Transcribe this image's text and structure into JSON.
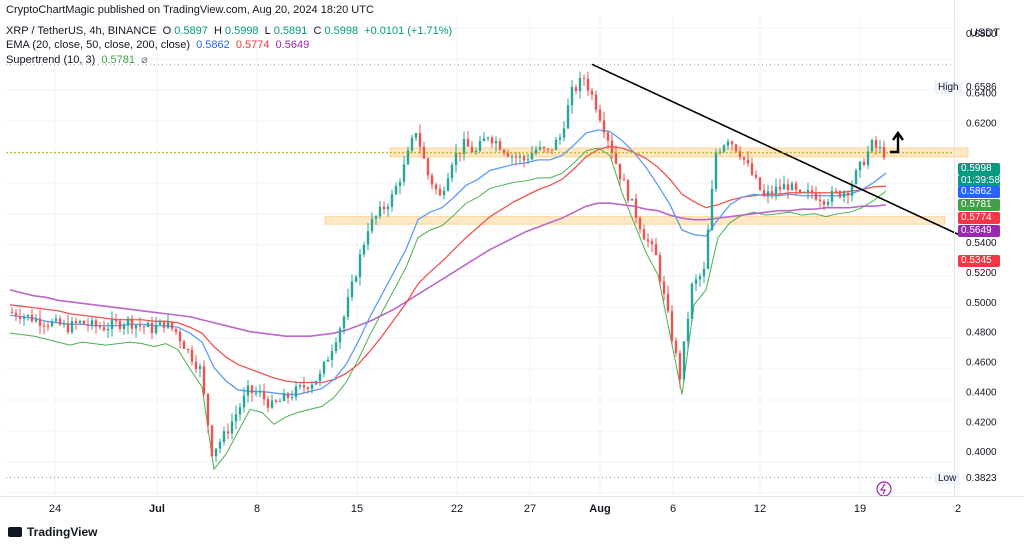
{
  "header": {
    "published": "CryptoChartMagic published on TradingView.com, Aug 20, 2024 18:20 UTC",
    "line1": {
      "symbol": "XRP / TetherUS, 4h, BINANCE",
      "open_label": "O",
      "open": "0.5897",
      "high_label": "H",
      "high": "0.5998",
      "low_label": "L",
      "low": "0.5891",
      "close_label": "C",
      "close": "0.5998",
      "change": "+0.0101 (+1.71%)"
    },
    "line2": {
      "label": "EMA (20, close, 50, close, 200, close)",
      "ema20": "0.5862",
      "ema50": "0.5774",
      "ema200": "0.5649"
    },
    "line3": {
      "label": "Supertrend (10, 3)",
      "value": "0.5781",
      "eye": "⌀"
    }
  },
  "price_scale": {
    "currency": "USDT",
    "ticks": [
      "0.6800",
      "0.6400",
      "0.6200",
      "0.5400",
      "0.5200",
      "0.5000",
      "0.4800",
      "0.4600",
      "0.4400",
      "0.4200",
      "0.4000"
    ],
    "high_label": "High",
    "high_value": "0.6586",
    "low_label": "Low",
    "low_value": "0.3823",
    "tags": {
      "price": "0.5998",
      "countdown": "01:39:58",
      "ema20": "0.5862",
      "supertrend": "0.5781",
      "ema50": "0.5774",
      "ema200": "0.5649",
      "supertrend_upper": "0.5345"
    }
  },
  "time_axis": {
    "labels": [
      "24",
      "Jul",
      "8",
      "15",
      "22",
      "27",
      "Aug",
      "6",
      "12",
      "19",
      "2"
    ]
  },
  "branding": {
    "logo_text": "TradingView"
  },
  "colors": {
    "up": "#26a69a",
    "down": "#ef5350",
    "ema20": "#5b9cf6",
    "ema50": "#ef5350",
    "ema200": "#ba68c8",
    "supertrend_up": "#4caf50",
    "supertrend_down": "#ef5350",
    "zone": "#ffe0b2",
    "zone_border": "#ffb74d",
    "trendline": "#000000",
    "price_line": "#b6a900",
    "grid": "#f0f3fa",
    "tag_price": "#089981",
    "tag_ema20": "#2962ff",
    "tag_supertrend": "#43a047",
    "tag_ema50": "#f23645",
    "tag_ema200": "#9c27b0",
    "tag_st_upper": "#f23645"
  },
  "chart_data": {
    "type": "candlestick",
    "symbol": "XRP / TetherUS",
    "interval": "4h",
    "exchange": "BINANCE",
    "x": [
      "Jun 24",
      "Jul",
      "Jul 8",
      "Jul 15",
      "Jul 22",
      "Jul 27",
      "Aug",
      "Aug 6",
      "Aug 12",
      "Aug 19",
      "Aug 2?"
    ],
    "y_range": [
      0.37,
      0.69
    ],
    "close_path": [
      0.493,
      0.492,
      0.489,
      0.487,
      0.485,
      0.483,
      0.486,
      0.484,
      0.483,
      0.485,
      0.487,
      0.484,
      0.482,
      0.486,
      0.48,
      0.467,
      0.455,
      0.4,
      0.41,
      0.425,
      0.44,
      0.438,
      0.43,
      0.435,
      0.44,
      0.445,
      0.45,
      0.47,
      0.49,
      0.52,
      0.55,
      0.56,
      0.57,
      0.59,
      0.615,
      0.585,
      0.57,
      0.595,
      0.605,
      0.6,
      0.612,
      0.605,
      0.598,
      0.595,
      0.602,
      0.6,
      0.61,
      0.64,
      0.65,
      0.632,
      0.61,
      0.585,
      0.565,
      0.545,
      0.53,
      0.49,
      0.45,
      0.51,
      0.52,
      0.6,
      0.61,
      0.6,
      0.585,
      0.57,
      0.575,
      0.578,
      0.57,
      0.573,
      0.569,
      0.572,
      0.575,
      0.59,
      0.605,
      0.5998
    ],
    "ema20_path": [
      0.491,
      0.49,
      0.489,
      0.487,
      0.486,
      0.485,
      0.485,
      0.484,
      0.484,
      0.484,
      0.485,
      0.485,
      0.484,
      0.484,
      0.483,
      0.479,
      0.473,
      0.456,
      0.447,
      0.441,
      0.44,
      0.44,
      0.439,
      0.438,
      0.438,
      0.44,
      0.442,
      0.448,
      0.458,
      0.473,
      0.49,
      0.505,
      0.52,
      0.535,
      0.555,
      0.56,
      0.563,
      0.57,
      0.578,
      0.582,
      0.588,
      0.59,
      0.592,
      0.593,
      0.595,
      0.595,
      0.598,
      0.605,
      0.613,
      0.615,
      0.614,
      0.608,
      0.6,
      0.59,
      0.578,
      0.565,
      0.548,
      0.545,
      0.544,
      0.555,
      0.565,
      0.57,
      0.572,
      0.571,
      0.571,
      0.572,
      0.571,
      0.571,
      0.571,
      0.571,
      0.572,
      0.575,
      0.58,
      0.5862
    ],
    "ema50_path": [
      0.498,
      0.497,
      0.496,
      0.495,
      0.494,
      0.492,
      0.491,
      0.49,
      0.489,
      0.488,
      0.488,
      0.488,
      0.487,
      0.487,
      0.486,
      0.483,
      0.479,
      0.47,
      0.463,
      0.458,
      0.455,
      0.452,
      0.449,
      0.447,
      0.446,
      0.446,
      0.446,
      0.448,
      0.452,
      0.458,
      0.467,
      0.477,
      0.488,
      0.499,
      0.512,
      0.52,
      0.527,
      0.535,
      0.543,
      0.55,
      0.557,
      0.562,
      0.567,
      0.571,
      0.575,
      0.578,
      0.582,
      0.589,
      0.597,
      0.602,
      0.604,
      0.603,
      0.6,
      0.596,
      0.59,
      0.582,
      0.572,
      0.567,
      0.563,
      0.565,
      0.568,
      0.57,
      0.571,
      0.572,
      0.572,
      0.573,
      0.573,
      0.573,
      0.573,
      0.573,
      0.574,
      0.575,
      0.577,
      0.5774
    ],
    "ema200_path": [
      0.508,
      0.506,
      0.504,
      0.503,
      0.501,
      0.5,
      0.499,
      0.498,
      0.497,
      0.496,
      0.495,
      0.494,
      0.493,
      0.492,
      0.491,
      0.49,
      0.488,
      0.486,
      0.484,
      0.482,
      0.48,
      0.479,
      0.478,
      0.477,
      0.477,
      0.477,
      0.478,
      0.479,
      0.481,
      0.484,
      0.487,
      0.491,
      0.495,
      0.5,
      0.505,
      0.51,
      0.515,
      0.52,
      0.525,
      0.53,
      0.535,
      0.539,
      0.543,
      0.547,
      0.55,
      0.553,
      0.556,
      0.56,
      0.564,
      0.566,
      0.566,
      0.565,
      0.564,
      0.562,
      0.561,
      0.558,
      0.556,
      0.555,
      0.555,
      0.556,
      0.557,
      0.558,
      0.559,
      0.56,
      0.561,
      0.561,
      0.562,
      0.562,
      0.563,
      0.563,
      0.563,
      0.564,
      0.564,
      0.5649
    ],
    "zones": [
      {
        "from": 0.597,
        "to": 0.603
      },
      {
        "from": 0.552,
        "to": 0.557
      }
    ],
    "trendline": {
      "from": {
        "x": "Jul 30",
        "y": 0.659
      },
      "to": {
        "x": "Aug 2?",
        "y": 0.544
      }
    },
    "high": 0.6586,
    "low": 0.3823,
    "last_price": 0.5998
  }
}
